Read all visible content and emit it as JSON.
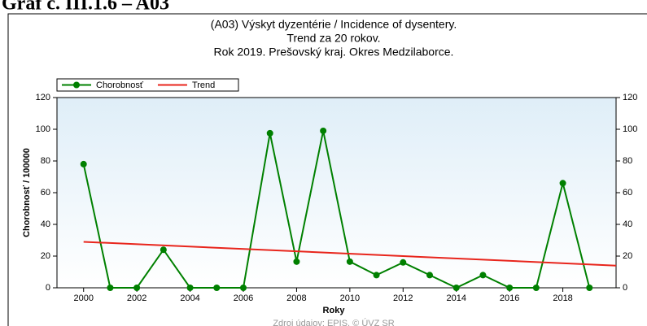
{
  "heading": "Graf č. III.1.6 – A03",
  "source": "Zdroj údajov: EPIS, © ÚVZ SR",
  "chart_data": {
    "type": "line",
    "title": [
      "(A03) Výskyt dyzentérie / Incidence of dysentery.",
      "Trend za 20 rokov.",
      "Rok 2019. Prešovský kraj. Okres Medzilaborce."
    ],
    "x_label": "Roky",
    "y_label": "Chorobnosť / 100000",
    "xlim": [
      1999,
      2020
    ],
    "xticks": [
      2000,
      2002,
      2004,
      2006,
      2008,
      2010,
      2012,
      2014,
      2016,
      2018
    ],
    "ylim": [
      0,
      120
    ],
    "yticks": [
      0,
      20,
      40,
      60,
      80,
      100,
      120
    ],
    "y2lim": [
      0,
      120
    ],
    "y2ticks": [
      0,
      20,
      40,
      60,
      80,
      100,
      120
    ],
    "legend": "top-left",
    "series": [
      {
        "name": "Chorobnosť",
        "color": "#008000",
        "markers": true,
        "x": [
          2000,
          2001,
          2002,
          2003,
          2004,
          2005,
          2006,
          2007,
          2008,
          2009,
          2010,
          2011,
          2012,
          2013,
          2014,
          2015,
          2016,
          2017,
          2018,
          2019
        ],
        "values": [
          78,
          0,
          0,
          24,
          0,
          0,
          0,
          97.5,
          16.5,
          99,
          16.5,
          8,
          16,
          8,
          0,
          8,
          0,
          0,
          66,
          0
        ]
      },
      {
        "name": "Trend",
        "color": "#e8251c",
        "markers": false,
        "x": [
          2000,
          2020
        ],
        "values": [
          29,
          14
        ]
      }
    ]
  }
}
